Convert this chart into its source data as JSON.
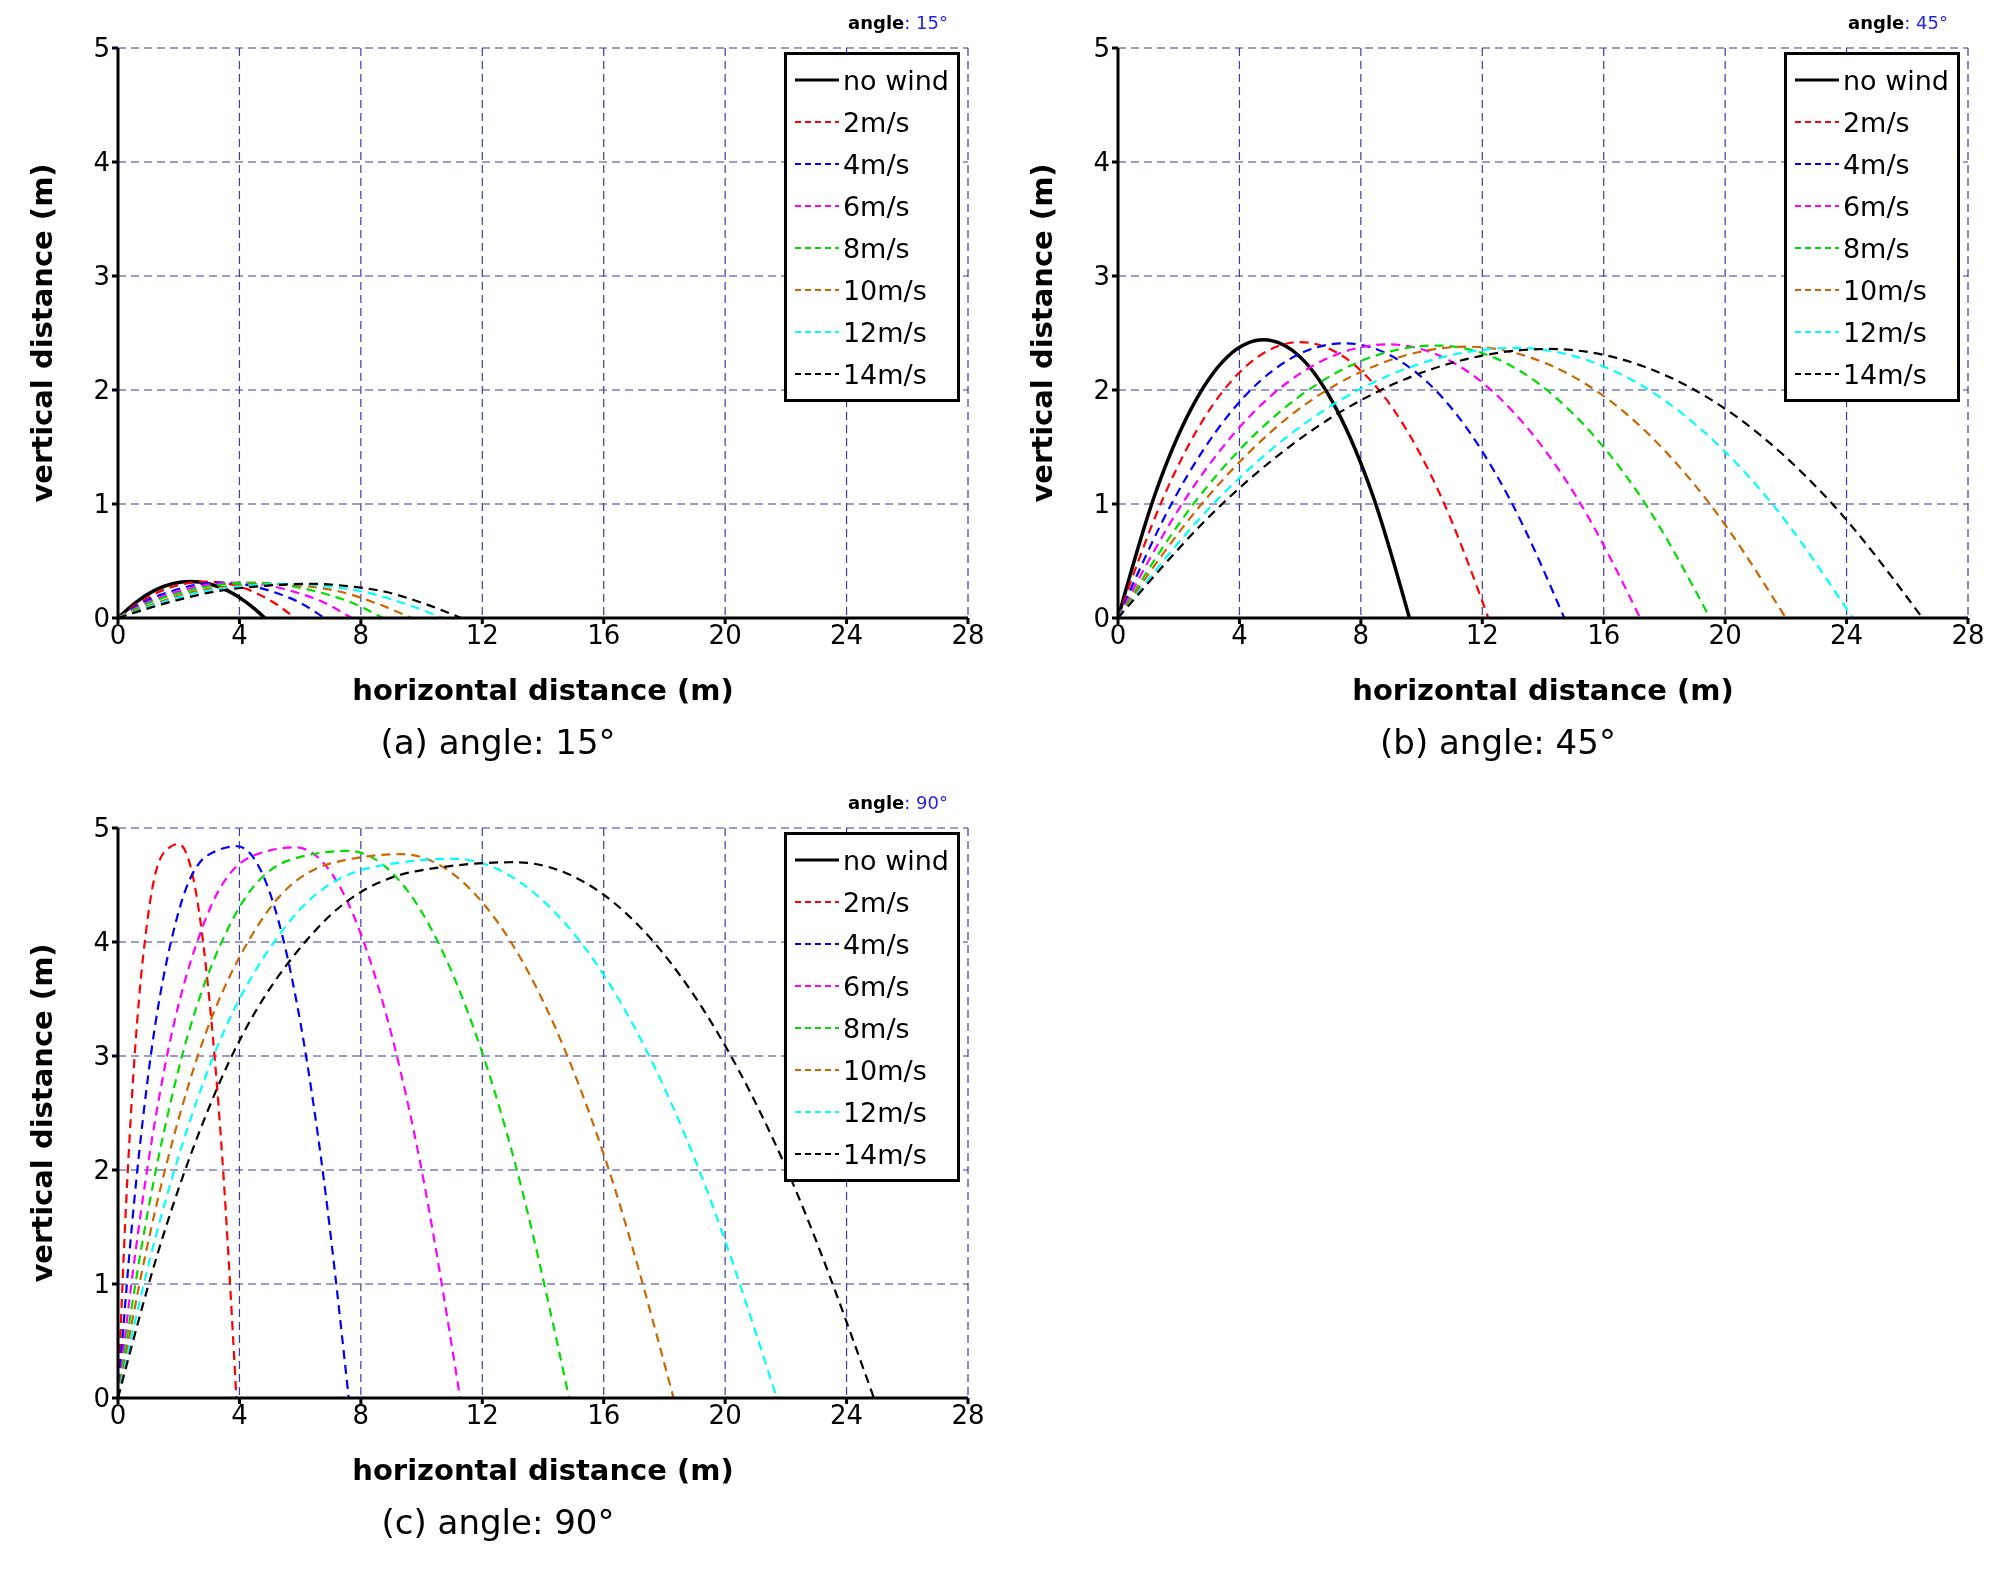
{
  "chart_data": [
    {
      "type": "line",
      "subtitle": "angle: 15°",
      "xlabel": "horizontal distance (m)",
      "ylabel": "vertical distance (m)",
      "annotations": [
        "(a) angle: 15°"
      ],
      "xlim": [
        0,
        28
      ],
      "xticks": [
        0,
        4,
        8,
        12,
        16,
        20,
        24,
        28
      ],
      "ylim": [
        0,
        5
      ],
      "yticks": [
        0,
        1,
        2,
        3,
        4,
        5
      ],
      "grid": true,
      "legend": "top right",
      "line_style": "dashed",
      "series": [
        {
          "name": "no wind",
          "color": "#000000",
          "line_style": "solid",
          "x": [
            0,
            0.6,
            1.19,
            1.79,
            2.38,
            2.99,
            3.61,
            4.22,
            4.84
          ],
          "values": [
            0,
            0.14,
            0.24,
            0.3,
            0.32,
            0.3,
            0.24,
            0.14,
            0
          ]
        },
        {
          "name": "2m/s",
          "color": "#ff0000",
          "x": [
            0,
            0.73,
            1.45,
            2.18,
            2.9,
            3.63,
            4.37,
            5.1,
            5.83
          ],
          "values": [
            0,
            0.14,
            0.24,
            0.3,
            0.32,
            0.3,
            0.24,
            0.14,
            0
          ]
        },
        {
          "name": "4m/s",
          "color": "#0000ff",
          "x": [
            0,
            0.85,
            1.7,
            2.55,
            3.4,
            4.25,
            5.1,
            5.95,
            6.8
          ],
          "values": [
            0,
            0.14,
            0.23,
            0.29,
            0.31,
            0.29,
            0.23,
            0.14,
            0
          ]
        },
        {
          "name": "6m/s",
          "color": "#ff00ff",
          "x": [
            0,
            0.98,
            1.95,
            2.93,
            3.9,
            4.85,
            5.8,
            6.75,
            7.7
          ],
          "values": [
            0,
            0.14,
            0.23,
            0.29,
            0.31,
            0.29,
            0.23,
            0.14,
            0
          ]
        },
        {
          "name": "8m/s",
          "color": "#00dd00",
          "x": [
            0,
            1.1,
            2.2,
            3.3,
            4.4,
            5.48,
            6.57,
            7.65,
            8.73
          ],
          "values": [
            0,
            0.14,
            0.23,
            0.29,
            0.31,
            0.29,
            0.23,
            0.14,
            0
          ]
        },
        {
          "name": "10m/s",
          "color": "#cc6600",
          "x": [
            0,
            1.25,
            2.5,
            3.75,
            5,
            6.17,
            7.34,
            8.5,
            9.67
          ],
          "values": [
            0,
            0.13,
            0.23,
            0.28,
            0.3,
            0.28,
            0.23,
            0.13,
            0
          ]
        },
        {
          "name": "12m/s",
          "color": "#00ffff",
          "x": [
            0,
            1.38,
            2.75,
            4.13,
            5.5,
            6.8,
            8.1,
            9.4,
            10.7
          ],
          "values": [
            0,
            0.13,
            0.23,
            0.28,
            0.3,
            0.28,
            0.23,
            0.13,
            0
          ]
        },
        {
          "name": "14m/s",
          "color": "#000000",
          "x": [
            0,
            1.58,
            3.15,
            4.73,
            6.3,
            7.55,
            8.8,
            10.05,
            11.3
          ],
          "values": [
            0,
            0.13,
            0.23,
            0.28,
            0.3,
            0.28,
            0.23,
            0.13,
            0
          ]
        }
      ]
    },
    {
      "type": "line",
      "subtitle": "angle: 45°",
      "xlabel": "horizontal distance (m)",
      "ylabel": "vertical distance (m)",
      "annotations": [
        "(b) angle: 45°"
      ],
      "xlim": [
        0,
        28
      ],
      "xticks": [
        0,
        4,
        8,
        12,
        16,
        20,
        24,
        28
      ],
      "ylim": [
        0,
        5
      ],
      "yticks": [
        0,
        1,
        2,
        3,
        4,
        5
      ],
      "grid": true,
      "legend": "top right",
      "line_style": "dashed",
      "series": [
        {
          "name": "no wind",
          "color": "#000000",
          "line_style": "solid",
          "x": [
            0,
            1.2,
            2.4,
            3.6,
            4.8,
            6.0,
            7.2,
            8.4,
            9.6
          ],
          "values": [
            0,
            1.07,
            1.83,
            2.29,
            2.44,
            2.29,
            1.83,
            1.07,
            0
          ]
        },
        {
          "name": "2m/s",
          "color": "#ff0000",
          "x": [
            0,
            1.5,
            3,
            4.5,
            6,
            7.55,
            9.1,
            10.65,
            12.2
          ],
          "values": [
            0,
            1.06,
            1.82,
            2.27,
            2.42,
            2.27,
            1.82,
            1.06,
            0
          ]
        },
        {
          "name": "4m/s",
          "color": "#0000ff",
          "x": [
            0,
            1.86,
            3.73,
            5.59,
            7.45,
            9.26,
            11.08,
            12.89,
            14.7
          ],
          "values": [
            0,
            1.05,
            1.81,
            2.26,
            2.41,
            2.26,
            1.81,
            1.05,
            0
          ]
        },
        {
          "name": "6m/s",
          "color": "#ff00ff",
          "x": [
            0,
            2.23,
            4.45,
            6.68,
            8.9,
            10.98,
            13.05,
            15.13,
            17.2
          ],
          "values": [
            0,
            1.05,
            1.8,
            2.25,
            2.4,
            2.25,
            1.8,
            1.05,
            0
          ]
        },
        {
          "name": "8m/s",
          "color": "#00dd00",
          "x": [
            0,
            2.63,
            5.25,
            7.88,
            10.5,
            12.75,
            15,
            17.25,
            19.5
          ],
          "values": [
            0,
            1.05,
            1.79,
            2.24,
            2.39,
            2.24,
            1.79,
            1.05,
            0
          ]
        },
        {
          "name": "10m/s",
          "color": "#cc6600",
          "x": [
            0,
            2.88,
            5.75,
            8.63,
            11.5,
            14.13,
            16.75,
            19.38,
            22
          ],
          "values": [
            0,
            1.04,
            1.79,
            2.23,
            2.38,
            2.23,
            1.79,
            1.04,
            0
          ]
        },
        {
          "name": "12m/s",
          "color": "#00ffff",
          "x": [
            0,
            3.28,
            6.55,
            9.83,
            13.1,
            15.88,
            18.65,
            21.43,
            24.2
          ],
          "values": [
            0,
            1.04,
            1.78,
            2.22,
            2.37,
            2.22,
            1.78,
            1.04,
            0
          ]
        },
        {
          "name": "14m/s",
          "color": "#000000",
          "x": [
            0,
            3.55,
            7.1,
            10.65,
            14.2,
            17.28,
            20.35,
            23.43,
            26.5
          ],
          "values": [
            0,
            1.03,
            1.77,
            2.21,
            2.36,
            2.21,
            1.77,
            1.03,
            0
          ]
        }
      ]
    },
    {
      "type": "line",
      "subtitle": "angle: 90°",
      "xlabel": "horizontal distance (m)",
      "ylabel": "vertical distance (m)",
      "annotations": [
        "(c) angle: 90°"
      ],
      "xlim": [
        0,
        28
      ],
      "xticks": [
        0,
        4,
        8,
        12,
        16,
        20,
        24,
        28
      ],
      "ylim": [
        0,
        5
      ],
      "yticks": [
        0,
        1,
        2,
        3,
        4,
        5
      ],
      "grid": true,
      "legend": "top right",
      "line_style": "dashed",
      "series": [
        {
          "name": "no wind",
          "color": "#000000",
          "line_style": "solid"
        },
        {
          "name": "2m/s",
          "color": "#ff0000",
          "x": [
            0,
            0.2,
            0.5,
            1,
            1.5,
            2,
            2.48,
            2.95,
            3.43,
            3.9
          ],
          "values": [
            0,
            1.32,
            2.81,
            4.25,
            4.78,
            4.86,
            4.56,
            3.65,
            2.13,
            0
          ]
        },
        {
          "name": "4m/s",
          "color": "#0000ff",
          "x": [
            0,
            0.39,
            0.98,
            1.97,
            2.95,
            3.93,
            4.85,
            5.77,
            6.68,
            7.6
          ],
          "values": [
            0,
            1.31,
            2.8,
            4.24,
            4.76,
            4.84,
            4.54,
            3.63,
            2.12,
            0
          ]
        },
        {
          "name": "6m/s",
          "color": "#ff00ff",
          "x": [
            0,
            0.59,
            1.46,
            2.93,
            4.39,
            5.85,
            7.21,
            8.56,
            9.92,
            11.27
          ],
          "values": [
            0,
            1.31,
            2.79,
            4.23,
            4.75,
            4.83,
            4.53,
            3.62,
            2.11,
            0
          ]
        },
        {
          "name": "8m/s",
          "color": "#00dd00",
          "x": [
            0,
            0.76,
            1.89,
            3.78,
            5.67,
            7.56,
            9.39,
            11.21,
            13.04,
            14.86
          ],
          "values": [
            0,
            1.3,
            2.77,
            4.2,
            4.72,
            4.8,
            4.5,
            3.6,
            2.1,
            0
          ]
        },
        {
          "name": "10m/s",
          "color": "#cc6600",
          "x": [
            0,
            0.93,
            2.34,
            4.67,
            7.01,
            9.34,
            11.58,
            13.82,
            16.06,
            18.3
          ],
          "values": [
            0,
            1.29,
            2.76,
            4.17,
            4.69,
            4.77,
            4.47,
            3.58,
            2.09,
            0
          ]
        },
        {
          "name": "12m/s",
          "color": "#00ffff",
          "x": [
            0,
            1.11,
            2.76,
            5.53,
            8.29,
            11.05,
            13.71,
            16.38,
            19.04,
            21.7
          ],
          "values": [
            0,
            1.28,
            2.73,
            4.14,
            4.65,
            4.73,
            4.43,
            3.55,
            2.07,
            0
          ]
        },
        {
          "name": "14m/s",
          "color": "#000000",
          "x": [
            0,
            1.31,
            3.27,
            6.53,
            9.8,
            13.06,
            16.02,
            18.98,
            21.94,
            24.9
          ],
          "values": [
            0,
            1.27,
            2.72,
            4.11,
            4.62,
            4.7,
            4.41,
            3.53,
            2.06,
            0
          ]
        }
      ]
    }
  ]
}
